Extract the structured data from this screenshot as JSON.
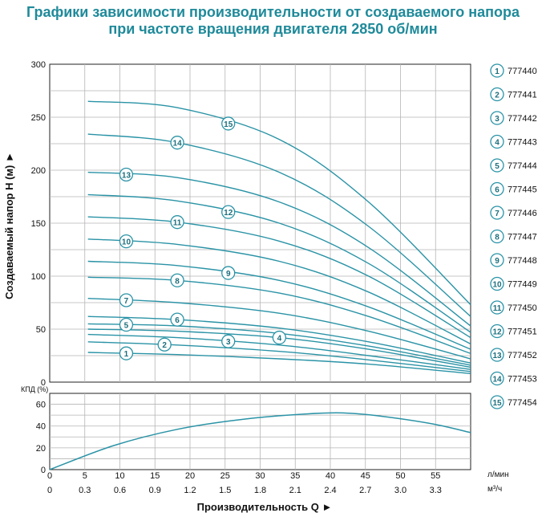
{
  "title_line1": "Графики зависимости производительности от создаваемого напора",
  "title_line2": "при частоте вращения двигателя 2850 об/мин",
  "colors": {
    "title": "#1f8a9a",
    "curve": "#2a93a6",
    "grid": "#b5b5b5",
    "axis": "#222222"
  },
  "chart_data": [
    {
      "type": "line",
      "ylabel": "Создаваемый напор H (м) ►",
      "ylim": [
        0,
        300
      ],
      "yticks": [
        "0",
        "50",
        "100",
        "150",
        "200",
        "250",
        "300"
      ],
      "xlim": [
        0,
        3.3
      ],
      "grid": true,
      "legend_position": "right",
      "series": [
        {
          "name": "777440",
          "label": "1",
          "x": [
            0.3,
            1.0,
            1.8,
            2.5,
            3.3
          ],
          "y": [
            28,
            26,
            22,
            17,
            8
          ]
        },
        {
          "name": "777441",
          "label": "2",
          "x": [
            0.3,
            1.0,
            1.8,
            2.5,
            3.3
          ],
          "y": [
            38,
            35,
            29,
            21,
            10
          ]
        },
        {
          "name": "777442",
          "label": "3",
          "x": [
            0.3,
            1.0,
            1.8,
            2.5,
            3.3
          ],
          "y": [
            45,
            42,
            35,
            25,
            12
          ]
        },
        {
          "name": "777443",
          "label": "4",
          "x": [
            0.3,
            1.0,
            1.8,
            2.5,
            3.3
          ],
          "y": [
            50,
            48,
            42,
            31,
            14
          ]
        },
        {
          "name": "777444",
          "label": "5",
          "x": [
            0.3,
            1.0,
            1.8,
            2.5,
            3.3
          ],
          "y": [
            55,
            53,
            46,
            34,
            16
          ]
        },
        {
          "name": "777445",
          "label": "6",
          "x": [
            0.3,
            1.0,
            1.8,
            2.5,
            3.3
          ],
          "y": [
            62,
            59,
            51,
            38,
            18
          ]
        },
        {
          "name": "777446",
          "label": "7",
          "x": [
            0.3,
            1.0,
            1.8,
            2.5,
            3.3
          ],
          "y": [
            79,
            75,
            65,
            48,
            22
          ]
        },
        {
          "name": "777447",
          "label": "8",
          "x": [
            0.3,
            1.0,
            1.8,
            2.5,
            3.3
          ],
          "y": [
            99,
            96,
            84,
            62,
            27
          ]
        },
        {
          "name": "777448",
          "label": "9",
          "x": [
            0.3,
            1.0,
            1.8,
            2.5,
            3.3
          ],
          "y": [
            114,
            110,
            96,
            71,
            31
          ]
        },
        {
          "name": "777449",
          "label": "10",
          "x": [
            0.3,
            1.0,
            1.8,
            2.5,
            3.3
          ],
          "y": [
            135,
            130,
            114,
            85,
            36
          ]
        },
        {
          "name": "777450",
          "label": "11",
          "x": [
            0.3,
            1.0,
            1.8,
            2.5,
            3.3
          ],
          "y": [
            156,
            151,
            133,
            100,
            42
          ]
        },
        {
          "name": "777451",
          "label": "12",
          "x": [
            0.3,
            1.0,
            1.8,
            2.5,
            3.3
          ],
          "y": [
            177,
            171,
            150,
            112,
            47
          ]
        },
        {
          "name": "777452",
          "label": "13",
          "x": [
            0.3,
            1.0,
            1.8,
            2.5,
            3.3
          ],
          "y": [
            198,
            193,
            170,
            127,
            53
          ]
        },
        {
          "name": "777453",
          "label": "14",
          "x": [
            0.3,
            1.0,
            1.8,
            2.5,
            3.3
          ],
          "y": [
            234,
            226,
            198,
            147,
            62
          ]
        },
        {
          "name": "777454",
          "label": "15",
          "x": [
            0.3,
            1.0,
            1.8,
            2.5,
            3.3
          ],
          "y": [
            265,
            259,
            229,
            170,
            73
          ]
        }
      ],
      "curve_label_x": [
        0.6,
        0.9,
        1.4,
        1.8,
        0.6,
        1.0,
        0.6,
        1.0,
        1.4,
        0.6,
        1.0,
        1.4,
        0.6,
        1.0,
        1.4
      ]
    },
    {
      "type": "line",
      "ylabel": "КПД (%)",
      "ylim": [
        0,
        70
      ],
      "yticks": [
        "0",
        "20",
        "40",
        "60"
      ],
      "xlim": [
        0,
        3.3
      ],
      "grid": true,
      "series": [
        {
          "x": [
            0,
            0.5,
            1.0,
            1.5,
            2.0,
            2.3,
            2.6,
            3.0,
            3.3
          ],
          "y": [
            0,
            22,
            37,
            46,
            51,
            52,
            49,
            42,
            34
          ]
        }
      ]
    }
  ],
  "x_axis": {
    "lpm_ticks": [
      "0",
      "5",
      "10",
      "15",
      "20",
      "25",
      "30",
      "35",
      "40",
      "45",
      "50",
      "55"
    ],
    "m3h_ticks": [
      "0",
      "0.3",
      "0.6",
      "0.9",
      "1.2",
      "1.5",
      "1.8",
      "2.1",
      "2.4",
      "2.7",
      "3.0",
      "3.3"
    ],
    "unit_lpm": "л/мин",
    "unit_m3h": "м³/ч",
    "label": "Производительность Q ►"
  },
  "legend": [
    {
      "num": "1",
      "code": "777440"
    },
    {
      "num": "2",
      "code": "777441"
    },
    {
      "num": "3",
      "code": "777442"
    },
    {
      "num": "4",
      "code": "777443"
    },
    {
      "num": "5",
      "code": "777444"
    },
    {
      "num": "6",
      "code": "777445"
    },
    {
      "num": "7",
      "code": "777446"
    },
    {
      "num": "8",
      "code": "777447"
    },
    {
      "num": "9",
      "code": "777448"
    },
    {
      "num": "10",
      "code": "777449"
    },
    {
      "num": "11",
      "code": "777450"
    },
    {
      "num": "12",
      "code": "777451"
    },
    {
      "num": "13",
      "code": "777452"
    },
    {
      "num": "14",
      "code": "777453"
    },
    {
      "num": "15",
      "code": "777454"
    }
  ]
}
